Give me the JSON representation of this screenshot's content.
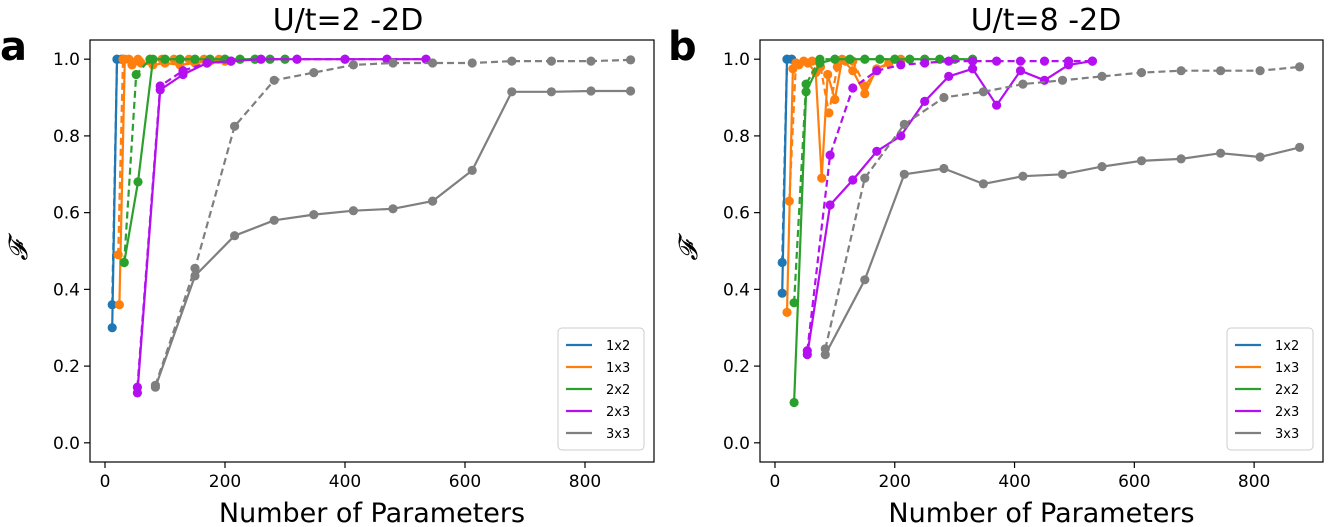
{
  "colors": {
    "1x2": "#1f77b4",
    "1x3": "#ff7f0e",
    "2x2": "#2ca02c",
    "2x3": "#b30ff0",
    "3x3": "#7f7f7f"
  },
  "chart_data": [
    {
      "type": "line",
      "panel_letter": "a",
      "title": "U/t=2 -2D",
      "xlabel": "Number of Parameters",
      "ylabel": "𝓕",
      "xlim": [
        -25,
        915
      ],
      "ylim": [
        -0.05,
        1.05
      ],
      "xticks": [
        0,
        200,
        400,
        600,
        800
      ],
      "yticks": [
        0.0,
        0.2,
        0.4,
        0.6,
        0.8,
        1.0
      ],
      "xtick_labels": [
        "0",
        "200",
        "400",
        "600",
        "800"
      ],
      "ytick_labels": [
        "0.0",
        "0.2",
        "0.4",
        "0.6",
        "0.8",
        "1.0"
      ],
      "legend_position": "lower-right",
      "legend": [
        "1x2",
        "1x3",
        "2x2",
        "2x3",
        "3x3"
      ],
      "series": [
        {
          "name": "1x2",
          "style": "solid",
          "x": [
            12,
            20,
            28
          ],
          "y": [
            0.3,
            1.0,
            1.0
          ]
        },
        {
          "name": "1x2",
          "style": "dashed",
          "x": [
            12,
            20,
            28
          ],
          "y": [
            0.36,
            1.0,
            1.0
          ]
        },
        {
          "name": "1x3",
          "style": "solid",
          "x": [
            24,
            33,
            45,
            60,
            80,
            100,
            125,
            150,
            175,
            200
          ],
          "y": [
            0.36,
            1.0,
            0.985,
            0.99,
            0.985,
            0.99,
            0.985,
            0.99,
            0.995,
            0.995
          ]
        },
        {
          "name": "1x3",
          "style": "dashed",
          "x": [
            22,
            30,
            40,
            55,
            75,
            95,
            115,
            140,
            165,
            190
          ],
          "y": [
            0.49,
            1.0,
            1.0,
            1.0,
            1.0,
            1.0,
            1.0,
            1.0,
            1.0,
            1.0
          ]
        },
        {
          "name": "2x2",
          "style": "solid",
          "x": [
            32,
            55,
            80,
            100,
            125,
            150,
            175,
            200,
            225,
            250,
            275,
            300
          ],
          "y": [
            0.47,
            0.68,
            1.0,
            1.0,
            1.0,
            1.0,
            1.0,
            1.0,
            1.0,
            1.0,
            1.0,
            1.0
          ]
        },
        {
          "name": "2x2",
          "style": "dashed",
          "x": [
            32,
            52,
            75,
            100,
            125,
            150,
            175,
            200,
            225,
            250,
            275,
            300
          ],
          "y": [
            0.47,
            0.96,
            1.0,
            1.0,
            1.0,
            1.0,
            1.0,
            1.0,
            1.0,
            1.0,
            1.0,
            1.0
          ]
        },
        {
          "name": "2x3",
          "style": "solid",
          "x": [
            54,
            92,
            130,
            170,
            210,
            260,
            320,
            400,
            470,
            535
          ],
          "y": [
            0.13,
            0.92,
            0.96,
            0.99,
            0.995,
            1.0,
            1.0,
            1.0,
            1.0,
            1.0
          ]
        },
        {
          "name": "2x3",
          "style": "dashed",
          "x": [
            54,
            92,
            130,
            170,
            210,
            260,
            320,
            400,
            470,
            535
          ],
          "y": [
            0.145,
            0.93,
            0.97,
            0.99,
            0.995,
            1.0,
            1.0,
            1.0,
            1.0,
            1.0
          ]
        },
        {
          "name": "3x3",
          "style": "solid",
          "x": [
            84,
            150,
            216,
            282,
            348,
            414,
            480,
            546,
            612,
            678,
            744,
            810,
            876
          ],
          "y": [
            0.145,
            0.435,
            0.54,
            0.58,
            0.595,
            0.605,
            0.61,
            0.63,
            0.71,
            0.915,
            0.915,
            0.917,
            0.917
          ]
        },
        {
          "name": "3x3",
          "style": "dashed",
          "x": [
            84,
            150,
            216,
            282,
            348,
            414,
            480,
            546,
            612,
            678,
            744,
            810,
            876
          ],
          "y": [
            0.15,
            0.455,
            0.825,
            0.945,
            0.965,
            0.985,
            0.99,
            0.99,
            0.99,
            0.995,
            0.995,
            0.995,
            0.998
          ]
        }
      ]
    },
    {
      "type": "line",
      "panel_letter": "b",
      "title": "U/t=8 -2D",
      "xlabel": "Number of Parameters",
      "ylabel": "𝓕",
      "xlim": [
        -25,
        915
      ],
      "ylim": [
        -0.05,
        1.05
      ],
      "xticks": [
        0,
        200,
        400,
        600,
        800
      ],
      "yticks": [
        0.0,
        0.2,
        0.4,
        0.6,
        0.8,
        1.0
      ],
      "xtick_labels": [
        "0",
        "200",
        "400",
        "600",
        "800"
      ],
      "ytick_labels": [
        "0.0",
        "0.2",
        "0.4",
        "0.6",
        "0.8",
        "1.0"
      ],
      "legend_position": "lower-right",
      "legend": [
        "1x2",
        "1x3",
        "2x2",
        "2x3",
        "3x3"
      ],
      "series": [
        {
          "name": "1x2",
          "style": "solid",
          "x": [
            12,
            20,
            28
          ],
          "y": [
            0.39,
            1.0,
            1.0
          ]
        },
        {
          "name": "1x2",
          "style": "dashed",
          "x": [
            12,
            20,
            28
          ],
          "y": [
            0.47,
            1.0,
            1.0
          ]
        },
        {
          "name": "1x3",
          "style": "solid",
          "x": [
            20,
            30,
            40,
            55,
            68,
            78,
            88,
            100,
            112,
            130,
            150,
            170,
            190,
            210
          ],
          "y": [
            0.34,
            0.975,
            0.985,
            0.99,
            0.965,
            0.69,
            0.96,
            0.895,
            1.0,
            0.97,
            0.91,
            0.975,
            0.99,
            1.0
          ]
        },
        {
          "name": "1x3",
          "style": "dashed",
          "x": [
            24,
            35,
            48,
            62,
            76,
            90,
            104,
            118,
            130,
            150,
            170,
            190,
            210
          ],
          "y": [
            0.63,
            0.99,
            0.995,
            0.995,
            0.98,
            0.86,
            0.98,
            0.995,
            0.995,
            0.93,
            0.97,
            0.99,
            0.995
          ]
        },
        {
          "name": "2x2",
          "style": "solid",
          "x": [
            32,
            52,
            75,
            100,
            125,
            150,
            175,
            200,
            225,
            250,
            275,
            300,
            330
          ],
          "y": [
            0.105,
            0.915,
            0.99,
            1.0,
            1.0,
            1.0,
            1.0,
            1.0,
            1.0,
            1.0,
            1.0,
            1.0,
            1.0
          ]
        },
        {
          "name": "2x2",
          "style": "dashed",
          "x": [
            32,
            52,
            75,
            100,
            125,
            150,
            175,
            200,
            225,
            250,
            275,
            300,
            330
          ],
          "y": [
            0.365,
            0.935,
            1.0,
            1.0,
            1.0,
            1.0,
            1.0,
            1.0,
            1.0,
            1.0,
            1.0,
            1.0,
            1.0
          ]
        },
        {
          "name": "2x3",
          "style": "solid",
          "x": [
            54,
            92,
            130,
            170,
            210,
            250,
            290,
            330,
            370,
            410,
            450,
            490,
            530
          ],
          "y": [
            0.23,
            0.62,
            0.685,
            0.76,
            0.8,
            0.89,
            0.955,
            0.975,
            0.88,
            0.97,
            0.945,
            0.985,
            0.995
          ]
        },
        {
          "name": "2x3",
          "style": "dashed",
          "x": [
            54,
            92,
            130,
            170,
            210,
            250,
            290,
            330,
            370,
            410,
            450,
            490,
            530
          ],
          "y": [
            0.24,
            0.75,
            0.925,
            0.97,
            0.985,
            0.99,
            0.995,
            0.995,
            0.995,
            0.995,
            0.995,
            0.995,
            0.995
          ]
        },
        {
          "name": "3x3",
          "style": "solid",
          "x": [
            84,
            150,
            216,
            282,
            348,
            414,
            480,
            546,
            612,
            678,
            744,
            810,
            876
          ],
          "y": [
            0.23,
            0.425,
            0.7,
            0.715,
            0.675,
            0.695,
            0.7,
            0.72,
            0.735,
            0.74,
            0.755,
            0.745,
            0.77
          ]
        },
        {
          "name": "3x3",
          "style": "dashed",
          "x": [
            84,
            150,
            216,
            282,
            348,
            414,
            480,
            546,
            612,
            678,
            744,
            810,
            876
          ],
          "y": [
            0.245,
            0.69,
            0.83,
            0.9,
            0.915,
            0.935,
            0.945,
            0.955,
            0.965,
            0.97,
            0.97,
            0.97,
            0.98
          ]
        }
      ]
    }
  ]
}
